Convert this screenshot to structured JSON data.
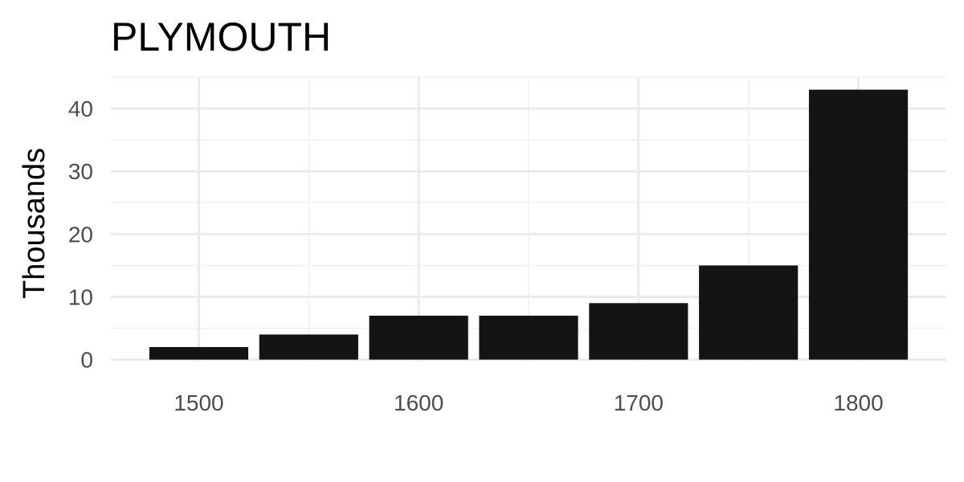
{
  "chart_data": {
    "type": "bar",
    "title": "PLYMOUTH",
    "xlabel": "",
    "ylabel": "Thousands",
    "x": [
      1500,
      1550,
      1600,
      1650,
      1700,
      1750,
      1800
    ],
    "values": [
      2,
      4,
      7,
      7,
      9,
      15,
      43
    ],
    "bar_color": "#141414",
    "xlim": [
      1460,
      1840
    ],
    "ylim": [
      -0.3,
      45
    ],
    "x_ticks": [
      1500,
      1600,
      1700,
      1800
    ],
    "x_tick_labels": [
      "1500",
      "1600",
      "1700",
      "1800"
    ],
    "y_ticks": [
      0,
      10,
      20,
      30,
      40
    ],
    "y_tick_labels": [
      "0",
      "10",
      "20",
      "30",
      "40"
    ],
    "grid": true,
    "legend": "none"
  }
}
